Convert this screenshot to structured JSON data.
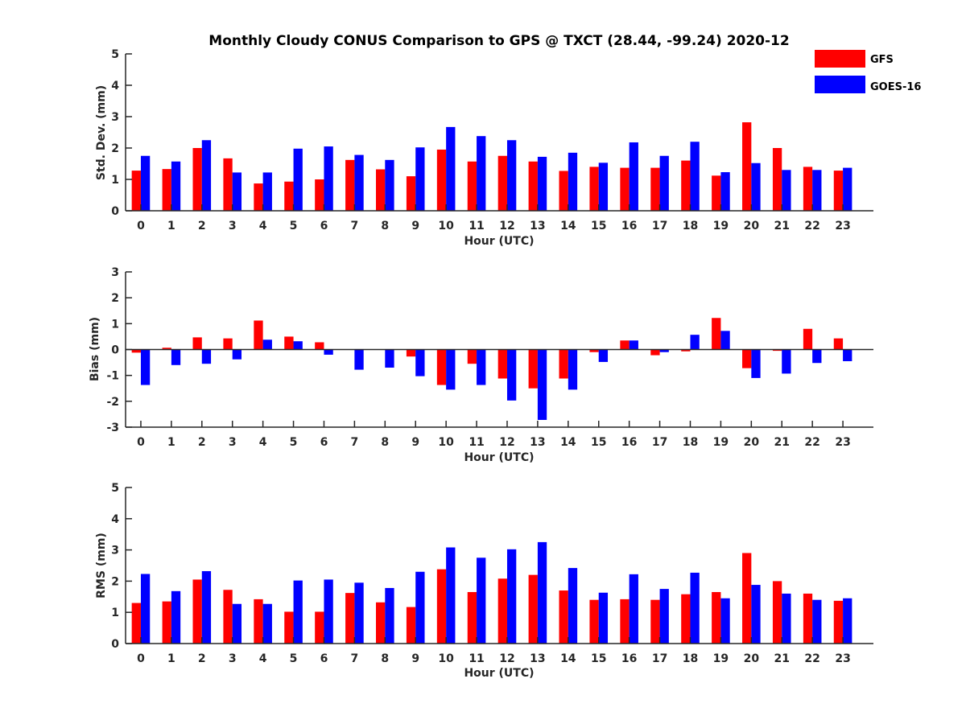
{
  "chart_data": [
    {
      "type": "bar",
      "title": "Monthly Cloudy CONUS Comparison to GPS @ TXCT (28.44, -99.24) 2020-12",
      "xlabel": "Hour (UTC)",
      "ylabel": "Std. Dev. (mm)",
      "ylim": [
        0,
        5
      ],
      "yticks": [
        0,
        1,
        2,
        3,
        4,
        5
      ],
      "categories": [
        "0",
        "1",
        "2",
        "3",
        "4",
        "5",
        "6",
        "7",
        "8",
        "9",
        "10",
        "11",
        "12",
        "13",
        "14",
        "15",
        "16",
        "17",
        "18",
        "19",
        "20",
        "21",
        "22",
        "23"
      ],
      "series": [
        {
          "name": "GFS",
          "color": "#ff0000",
          "values": [
            1.28,
            1.33,
            2.0,
            1.67,
            0.87,
            0.93,
            1.0,
            1.62,
            1.32,
            1.1,
            1.95,
            1.57,
            1.75,
            1.57,
            1.27,
            1.4,
            1.37,
            1.37,
            1.6,
            1.12,
            2.82,
            2.0,
            1.4,
            1.28
          ]
        },
        {
          "name": "GOES-16",
          "color": "#0000ff",
          "values": [
            1.75,
            1.57,
            2.25,
            1.22,
            1.22,
            1.98,
            2.05,
            1.78,
            1.62,
            2.02,
            2.67,
            2.38,
            2.25,
            1.72,
            1.85,
            1.53,
            2.18,
            1.75,
            2.2,
            1.23,
            1.52,
            1.3,
            1.3,
            1.37
          ]
        }
      ],
      "legend": "top-right",
      "grid": false
    },
    {
      "type": "bar",
      "title": "",
      "xlabel": "Hour (UTC)",
      "ylabel": "Bias (mm)",
      "ylim": [
        -3,
        3
      ],
      "yticks": [
        -3,
        -2,
        -1,
        0,
        1,
        2,
        3
      ],
      "categories": [
        "0",
        "1",
        "2",
        "3",
        "4",
        "5",
        "6",
        "7",
        "8",
        "9",
        "10",
        "11",
        "12",
        "13",
        "14",
        "15",
        "16",
        "17",
        "18",
        "19",
        "20",
        "21",
        "22",
        "23"
      ],
      "series": [
        {
          "name": "GFS",
          "color": "#ff0000",
          "values": [
            -0.12,
            0.07,
            0.47,
            0.43,
            1.12,
            0.5,
            0.28,
            0.0,
            0.0,
            -0.27,
            -1.37,
            -0.55,
            -1.12,
            -1.5,
            -1.12,
            -0.1,
            0.35,
            -0.22,
            -0.07,
            1.22,
            -0.72,
            -0.05,
            0.8,
            0.43
          ]
        },
        {
          "name": "GOES-16",
          "color": "#0000ff",
          "values": [
            -1.37,
            -0.6,
            -0.55,
            -0.38,
            0.38,
            0.32,
            -0.2,
            -0.78,
            -0.7,
            -1.03,
            -1.55,
            -1.37,
            -1.97,
            -2.72,
            -1.55,
            -0.48,
            0.35,
            -0.1,
            0.57,
            0.72,
            -1.1,
            -0.93,
            -0.52,
            -0.45
          ]
        }
      ],
      "grid": false
    },
    {
      "type": "bar",
      "title": "",
      "xlabel": "Hour (UTC)",
      "ylabel": "RMS (mm)",
      "ylim": [
        0,
        5
      ],
      "yticks": [
        0,
        1,
        2,
        3,
        4,
        5
      ],
      "categories": [
        "0",
        "1",
        "2",
        "3",
        "4",
        "5",
        "6",
        "7",
        "8",
        "9",
        "10",
        "11",
        "12",
        "13",
        "14",
        "15",
        "16",
        "17",
        "18",
        "19",
        "20",
        "21",
        "22",
        "23"
      ],
      "series": [
        {
          "name": "GFS",
          "color": "#ff0000",
          "values": [
            1.3,
            1.35,
            2.05,
            1.72,
            1.42,
            1.02,
            1.02,
            1.62,
            1.32,
            1.17,
            2.38,
            1.65,
            2.08,
            2.2,
            1.7,
            1.4,
            1.42,
            1.4,
            1.58,
            1.65,
            2.9,
            2.0,
            1.6,
            1.37
          ]
        },
        {
          "name": "GOES-16",
          "color": "#0000ff",
          "values": [
            2.23,
            1.68,
            2.32,
            1.27,
            1.27,
            2.02,
            2.05,
            1.95,
            1.78,
            2.3,
            3.08,
            2.75,
            3.02,
            3.25,
            2.42,
            1.63,
            2.22,
            1.75,
            2.27,
            1.45,
            1.88,
            1.6,
            1.4,
            1.45
          ]
        }
      ],
      "grid": false
    }
  ]
}
